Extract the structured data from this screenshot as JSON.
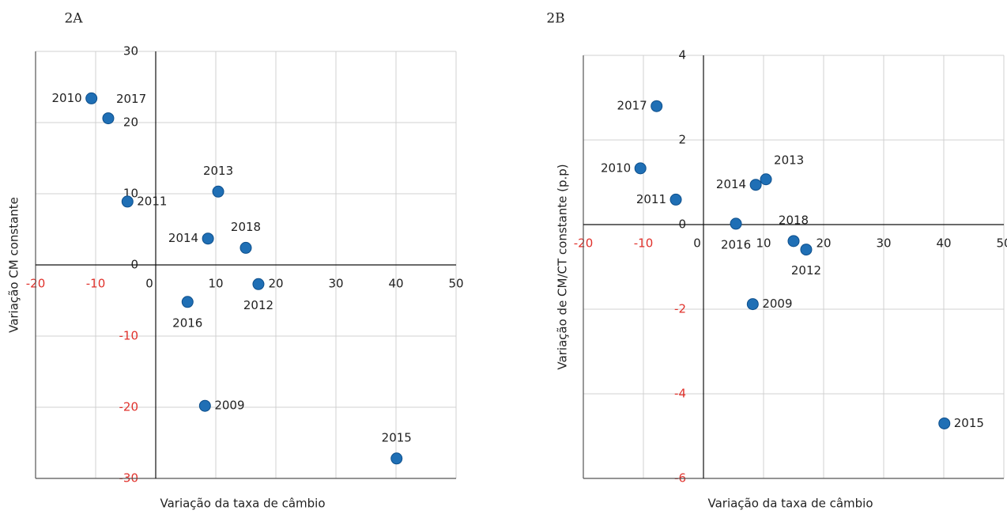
{
  "chart_data": [
    {
      "type": "scatter",
      "panel": "2A",
      "xlabel": "Variação da taxa de câmbio",
      "ylabel": "Variação CM constante",
      "color": "#1f6fb5",
      "xlim": [
        -20,
        50
      ],
      "xticks": [
        -20,
        -10,
        0,
        10,
        20,
        30,
        40,
        50
      ],
      "ylim": [
        -30,
        30
      ],
      "yticks": [
        -30,
        -20,
        -10,
        0,
        10,
        20,
        30
      ],
      "grid": true,
      "labels": [
        "2010",
        "2017",
        "2011",
        "2013",
        "2014",
        "2018",
        "2012",
        "2016",
        "2009",
        "2015"
      ],
      "x": [
        -10.7,
        -7.9,
        -4.7,
        10.4,
        8.7,
        15.0,
        17.1,
        5.3,
        8.2,
        40.1
      ],
      "values": [
        23.4,
        20.6,
        8.9,
        10.3,
        3.7,
        2.4,
        -2.7,
        -5.2,
        -19.8,
        -27.2
      ]
    },
    {
      "type": "scatter",
      "panel": "2B",
      "xlabel": "Variação da taxa de câmbio",
      "ylabel": "Variação de CM/CT constante (p.p)",
      "color": "#1f6fb5",
      "xlim": [
        -20,
        50
      ],
      "xticks": [
        -20,
        -10,
        0,
        10,
        20,
        30,
        40,
        50
      ],
      "ylim": [
        -6,
        4
      ],
      "yticks": [
        -6,
        -4,
        -2,
        0,
        2,
        4
      ],
      "grid": true,
      "labels": [
        "2017",
        "2010",
        "2011",
        "2014",
        "2013",
        "2016",
        "2018",
        "2012",
        "2009",
        "2015"
      ],
      "x": [
        -7.8,
        -10.5,
        -4.6,
        8.7,
        10.4,
        5.4,
        15.0,
        17.1,
        8.2,
        40.1
      ],
      "values": [
        2.8,
        1.33,
        0.59,
        0.94,
        1.07,
        0.02,
        -0.39,
        -0.59,
        -1.88,
        -4.7
      ]
    }
  ]
}
